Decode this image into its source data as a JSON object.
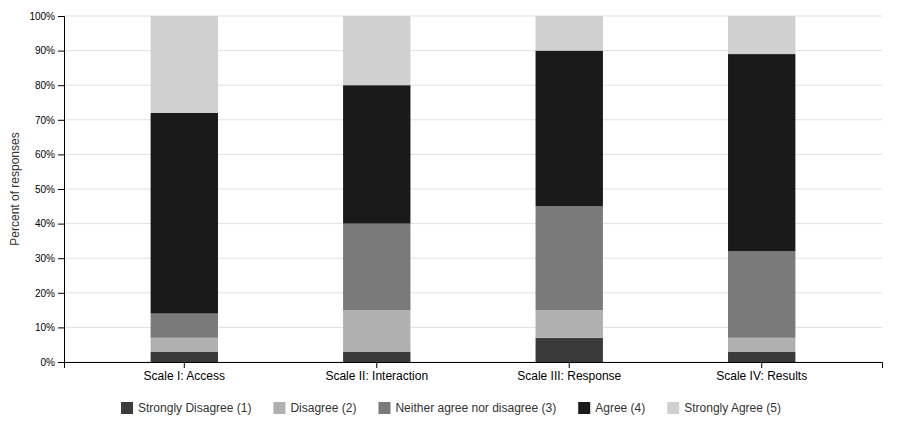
{
  "chart_data": {
    "type": "bar",
    "stacked": true,
    "categories": [
      "Scale I: Access",
      "Scale II: Interaction",
      "Scale III: Response",
      "Scale IV: Results"
    ],
    "series": [
      {
        "name": "Strongly Disagree (1)",
        "color": "#3a3a3a",
        "values": [
          3,
          3,
          7,
          3
        ]
      },
      {
        "name": "Disagree (2)",
        "color": "#b0b0b0",
        "values": [
          4,
          12,
          8,
          4
        ]
      },
      {
        "name": "Neither agree nor disagree (3)",
        "color": "#7a7a7a",
        "values": [
          7,
          25,
          30,
          25
        ]
      },
      {
        "name": "Agree (4)",
        "color": "#1a1a1a",
        "values": [
          58,
          40,
          45,
          57
        ]
      },
      {
        "name": "Strongly Agree (5)",
        "color": "#d0d0d0",
        "values": [
          28,
          20,
          10,
          11
        ]
      }
    ],
    "ylabel": "Percent of responses",
    "ylim": [
      0,
      100
    ],
    "yticks": [
      {
        "value": 0,
        "label": "0%"
      },
      {
        "value": 10,
        "label": "10%"
      },
      {
        "value": 20,
        "label": "20%"
      },
      {
        "value": 30,
        "label": "30%"
      },
      {
        "value": 40,
        "label": "40%"
      },
      {
        "value": 50,
        "label": "50%"
      },
      {
        "value": 60,
        "label": "60%"
      },
      {
        "value": 70,
        "label": "70%"
      },
      {
        "value": 80,
        "label": "80%"
      },
      {
        "value": 90,
        "label": "90%"
      },
      {
        "value": 100,
        "label": "100%"
      }
    ],
    "grid": true,
    "legend": "bottom"
  }
}
